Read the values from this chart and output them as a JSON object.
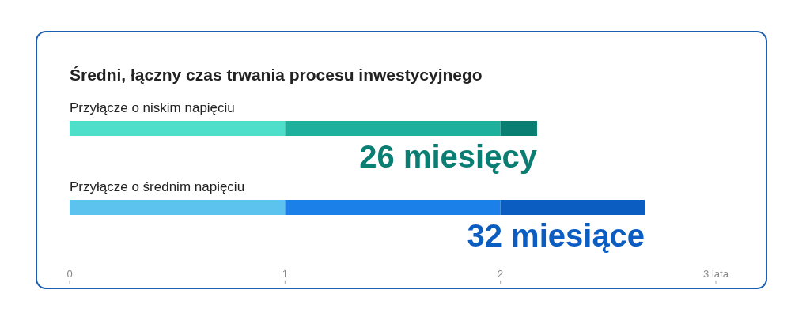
{
  "chart_data": {
    "type": "bar",
    "orientation": "horizontal",
    "stacked": true,
    "title": "Średni, łączny czas trwania procesu inwestycyjnego",
    "categories": [
      "Przyłącze o niskim napięciu",
      "Przyłącze o średnim napięciu"
    ],
    "series": [
      {
        "colors": [
          "#4ddfc9",
          "#5cc2ee"
        ],
        "values": [
          1,
          1
        ]
      },
      {
        "colors": [
          "#1cb09d",
          "#1b80e8"
        ],
        "values": [
          1,
          1
        ]
      },
      {
        "colors": [
          "#0b7e73",
          "#0b5dc2"
        ],
        "values": [
          0.17,
          0.67
        ]
      }
    ],
    "annotations": [
      "26 miesięcy",
      "32 miesiące"
    ],
    "xlim": [
      0,
      3
    ],
    "xticks": [
      0,
      1,
      2,
      {
        "value": 3,
        "label": "3 lata"
      }
    ],
    "grid": false
  }
}
